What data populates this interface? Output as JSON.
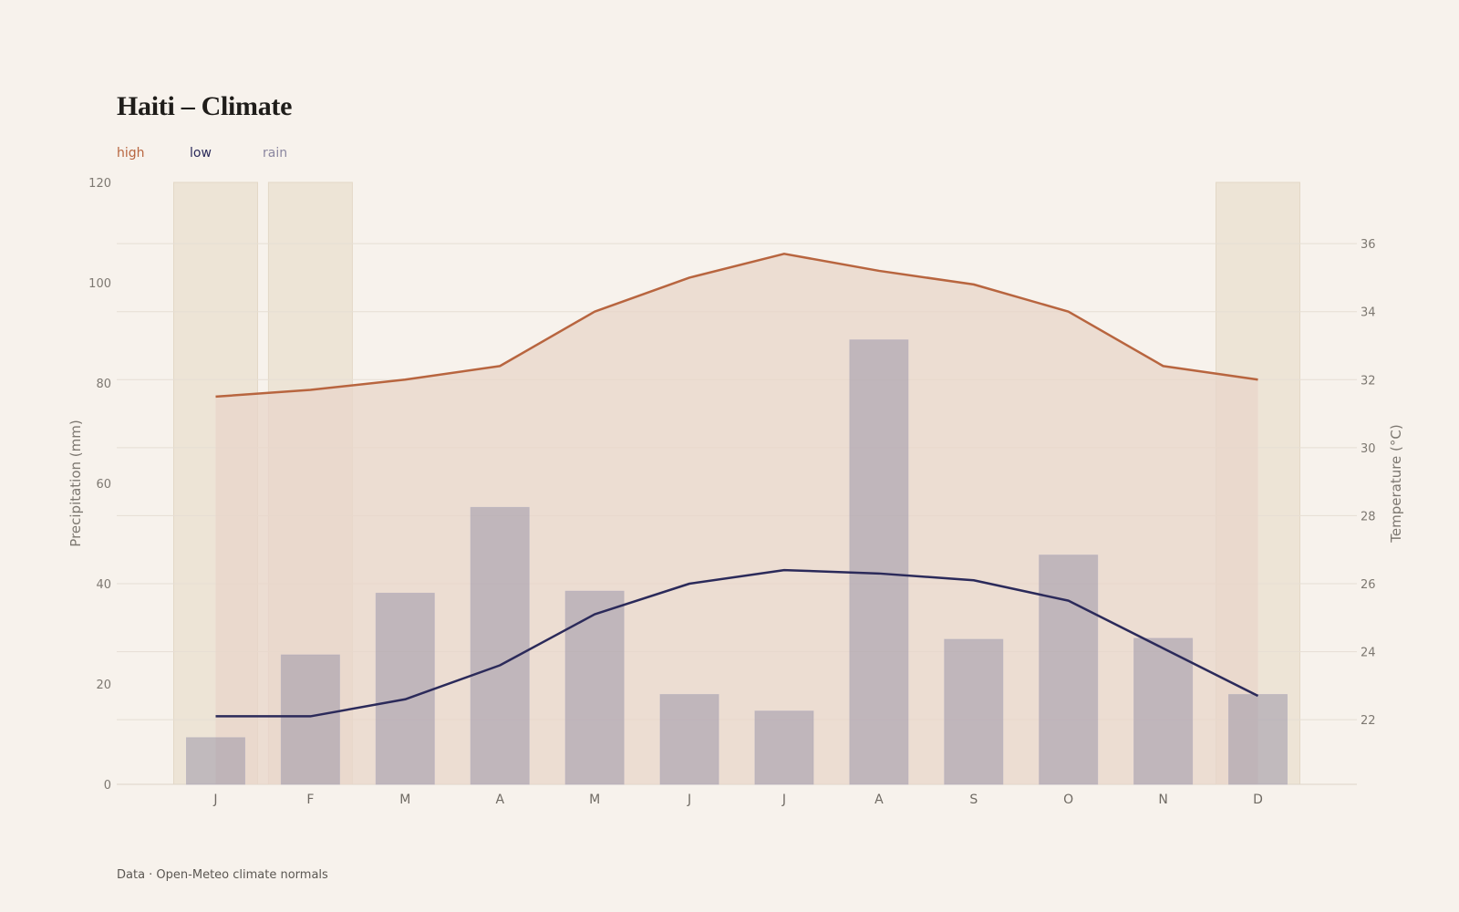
{
  "chart_data": {
    "type": "bar",
    "title": "Haiti – Climate",
    "categories": [
      "J",
      "F",
      "M",
      "A",
      "M",
      "J",
      "J",
      "A",
      "S",
      "O",
      "N",
      "D"
    ],
    "y_left_label": "Precipitation (mm)",
    "y_right_label": "Temperature (°C)",
    "y_left_lim": [
      0,
      120
    ],
    "y_left_ticks": [
      0,
      20,
      40,
      60,
      80,
      100,
      120
    ],
    "y_right_lim": [
      20.1,
      37.8
    ],
    "y_right_ticks": [
      22,
      24,
      26,
      28,
      30,
      32,
      34,
      36
    ],
    "highlighted_months": [
      0,
      1,
      11
    ],
    "series": [
      {
        "name": "rain",
        "type": "bar",
        "axis": "left",
        "values": [
          9.3,
          25.8,
          38.1,
          55.2,
          38.5,
          17.9,
          14.6,
          88.6,
          28.9,
          45.7,
          29.1,
          17.9
        ]
      },
      {
        "name": "high",
        "type": "line",
        "axis": "right",
        "values": [
          31.5,
          31.7,
          32.0,
          32.4,
          34.0,
          35.0,
          35.7,
          35.2,
          34.8,
          34.0,
          32.4,
          32.0
        ]
      },
      {
        "name": "low",
        "type": "line",
        "axis": "right",
        "values": [
          22.1,
          22.1,
          22.6,
          23.6,
          25.1,
          26.0,
          26.4,
          26.3,
          26.1,
          25.5,
          24.1,
          22.7
        ]
      }
    ],
    "legend_position": "top-left",
    "grid": true,
    "colors": {
      "high": "#b8653f",
      "low": "#2b2a5a",
      "rain": "#8b87a0",
      "high_fill": "#e8d5ca",
      "highlight": "#ede4d6"
    }
  },
  "legend": {
    "high": "high",
    "low": "low",
    "rain": "rain"
  },
  "footer": "Data · Open-Meteo climate normals"
}
